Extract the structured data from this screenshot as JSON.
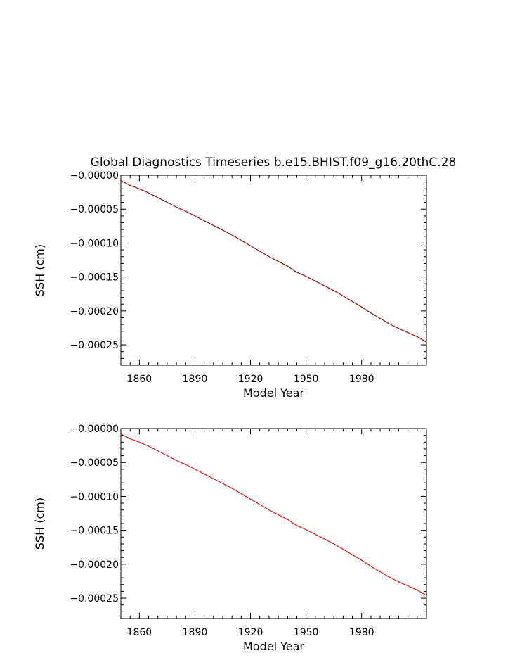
{
  "page_title": "Global Diagnostics Timeseries b.e15.BHIST.f09_g16.20thC.28",
  "colors": {
    "series_top": "#a01a1a",
    "series_bottom": "#e8241c",
    "axis": "#000000"
  },
  "chart_data": [
    {
      "type": "line",
      "xlabel": "Model Year",
      "ylabel": "SSH (cm)",
      "xlim": [
        1850,
        2015
      ],
      "ylim": [
        -0.00028,
        0.0
      ],
      "x_ticks": [
        1860,
        1890,
        1920,
        1950,
        1980
      ],
      "x_tick_labels": [
        "1860",
        "1890",
        "1920",
        "1950",
        "1980"
      ],
      "y_ticks": [
        0.0,
        -5e-05,
        -0.0001,
        -0.00015,
        -0.0002,
        -0.00025
      ],
      "y_tick_labels": [
        "−0.00000",
        "−0.00005",
        "−0.00010",
        "−0.00015",
        "−0.00020",
        "−0.00025"
      ],
      "grid": false,
      "series": [
        {
          "color": "#a01a1a",
          "x": [
            1850,
            1855,
            1860,
            1865,
            1870,
            1875,
            1880,
            1885,
            1890,
            1895,
            1900,
            1905,
            1910,
            1915,
            1920,
            1925,
            1930,
            1935,
            1940,
            1945,
            1950,
            1955,
            1960,
            1965,
            1970,
            1975,
            1980,
            1985,
            1990,
            1995,
            2000,
            2005,
            2010,
            2015
          ],
          "values": [
            -8e-06,
            -1.5e-05,
            -2e-05,
            -2.6e-05,
            -3.3e-05,
            -4e-05,
            -4.7e-05,
            -5.3e-05,
            -6e-05,
            -6.7e-05,
            -7.4e-05,
            -8.1e-05,
            -8.8e-05,
            -9.6e-05,
            -0.000104,
            -0.000112,
            -0.00012,
            -0.000127,
            -0.000134,
            -0.000143,
            -0.000149,
            -0.000156,
            -0.000163,
            -0.00017,
            -0.000178,
            -0.000186,
            -0.000194,
            -0.000203,
            -0.000211,
            -0.000219,
            -0.000226,
            -0.000232,
            -0.000238,
            -0.000246
          ]
        }
      ]
    },
    {
      "type": "line",
      "xlabel": "Model Year",
      "ylabel": "SSH (cm)",
      "xlim": [
        1850,
        2015
      ],
      "ylim": [
        -0.00028,
        0.0
      ],
      "x_ticks": [
        1860,
        1890,
        1920,
        1950,
        1980
      ],
      "x_tick_labels": [
        "1860",
        "1890",
        "1920",
        "1950",
        "1980"
      ],
      "y_ticks": [
        0.0,
        -5e-05,
        -0.0001,
        -0.00015,
        -0.0002,
        -0.00025
      ],
      "y_tick_labels": [
        "−0.00000",
        "−0.00005",
        "−0.00010",
        "−0.00015",
        "−0.00020",
        "−0.00025"
      ],
      "grid": false,
      "series": [
        {
          "color": "#e8241c",
          "x": [
            1850,
            1855,
            1860,
            1865,
            1870,
            1875,
            1880,
            1885,
            1890,
            1895,
            1900,
            1905,
            1910,
            1915,
            1920,
            1925,
            1930,
            1935,
            1940,
            1945,
            1950,
            1955,
            1960,
            1965,
            1970,
            1975,
            1980,
            1985,
            1990,
            1995,
            2000,
            2005,
            2010,
            2015
          ],
          "values": [
            -8e-06,
            -1.5e-05,
            -2e-05,
            -2.6e-05,
            -3.3e-05,
            -4e-05,
            -4.7e-05,
            -5.3e-05,
            -6e-05,
            -6.7e-05,
            -7.4e-05,
            -8.1e-05,
            -8.8e-05,
            -9.6e-05,
            -0.000104,
            -0.000112,
            -0.00012,
            -0.000127,
            -0.000134,
            -0.000143,
            -0.000149,
            -0.000156,
            -0.000163,
            -0.00017,
            -0.000178,
            -0.000186,
            -0.000194,
            -0.000203,
            -0.000211,
            -0.000219,
            -0.000226,
            -0.000232,
            -0.000238,
            -0.000246
          ]
        }
      ]
    }
  ]
}
